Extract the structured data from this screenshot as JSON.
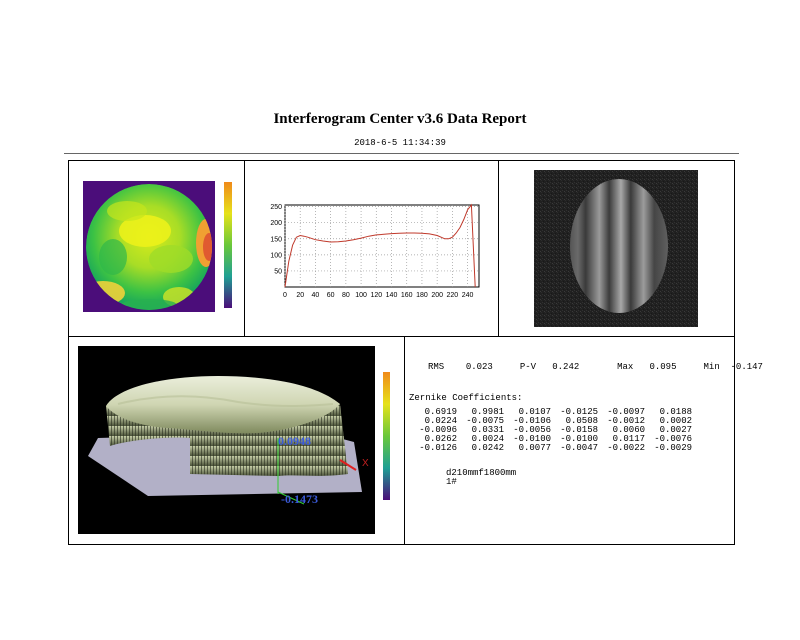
{
  "report": {
    "title": "Interferogram Center v3.6 Data Report",
    "timestamp": "2018-6-5 11:34:39"
  },
  "stats": {
    "rms_label": "RMS",
    "rms_value": "0.023",
    "pv_label": "P-V",
    "pv_value": "0.242",
    "max_label": "Max",
    "max_value": "0.095",
    "min_label": "Min",
    "min_value": "-0.147"
  },
  "zernike": {
    "heading": "Zernike Coefficients:",
    "rows": [
      [
        "0.6919",
        "0.9981",
        "0.0107",
        "-0.0125",
        "-0.0097",
        "0.0188"
      ],
      [
        "0.0224",
        "-0.0075",
        "-0.0106",
        "0.0508",
        "-0.0012",
        "0.0002"
      ],
      [
        "-0.0096",
        "0.0331",
        "-0.0056",
        "-0.0158",
        "0.0060",
        "0.0027"
      ],
      [
        "0.0262",
        "0.0024",
        "-0.0100",
        "-0.0100",
        "0.0117",
        "-0.0076"
      ],
      [
        "-0.0126",
        "0.0242",
        "0.0077",
        "-0.0047",
        "-0.0022",
        "-0.0029"
      ]
    ]
  },
  "notes": {
    "line1": "d210mmf1800mm",
    "line2": "1#"
  },
  "surface3d": {
    "max_label": "0.0948",
    "min_label": "-0.1473",
    "x_axis_label": "X"
  },
  "chart_data": {
    "type": "line",
    "x": [
      0,
      5,
      10,
      15,
      20,
      25,
      30,
      40,
      50,
      60,
      70,
      80,
      90,
      100,
      110,
      120,
      130,
      140,
      150,
      160,
      170,
      180,
      190,
      200,
      210,
      215,
      220,
      225,
      230,
      235,
      240,
      245,
      250
    ],
    "y": [
      0,
      80,
      130,
      155,
      160,
      158,
      155,
      147,
      143,
      140,
      141,
      143,
      147,
      152,
      158,
      162,
      164,
      166,
      167,
      168,
      168,
      167,
      165,
      160,
      150,
      150,
      155,
      168,
      185,
      210,
      240,
      255,
      0
    ],
    "xlim": [
      0,
      255
    ],
    "ylim": [
      0,
      255
    ],
    "xticks": [
      0,
      20,
      40,
      60,
      80,
      100,
      120,
      140,
      160,
      180,
      200,
      220,
      240
    ],
    "yticks": [
      50,
      100,
      150,
      200,
      250
    ],
    "grid": true,
    "line_color": "#c0392b",
    "title": "",
    "xlabel": "",
    "ylabel": ""
  }
}
